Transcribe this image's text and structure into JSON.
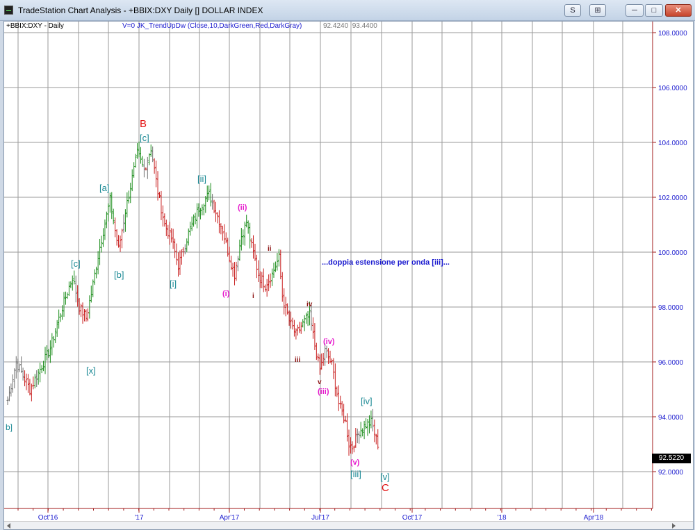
{
  "window": {
    "title": "TradeStation Chart Analysis - +BBIX:DXY Daily [] DOLLAR INDEX",
    "buttons": {
      "s_menu": "S",
      "grid_menu": "⊞",
      "minimize": "─",
      "maximize": "□",
      "close": "✕"
    }
  },
  "chart_header": {
    "symbol": "+BBIX:DXY - Daily",
    "indicator": "V=0  JK_TrendUpDw  (Close,10,DarkGreen,Red,DarkGray)",
    "indicator_values": [
      "92.4240",
      "93.4400"
    ]
  },
  "last_price": "92.5220",
  "annotation": "...doppia estensione per onda [iii]...",
  "colors": {
    "up": "#1a8c1a",
    "down": "#c81e1e",
    "neutral": "#707070",
    "axis": "#a01a1a",
    "grid": "#9a9a9a"
  },
  "chart_data": {
    "type": "bar",
    "y_ticks": [
      "108.0000",
      "106.0000",
      "104.0000",
      "102.0000",
      "100.0000",
      "98.0000",
      "96.0000",
      "94.0000",
      "92.0000"
    ],
    "x_ticks": [
      "Oct'16",
      "'17",
      "Apr'17",
      "Jul'17",
      "Oct'17",
      "'18",
      "Apr'18"
    ],
    "ylim": [
      90.8,
      108.5
    ],
    "grid": true,
    "path": [
      [
        0,
        94.6
      ],
      [
        5,
        96.0
      ],
      [
        13,
        95.0
      ],
      [
        18,
        95.6
      ],
      [
        25,
        96.5
      ],
      [
        32,
        98.0
      ],
      [
        38,
        99.1
      ],
      [
        42,
        98.0
      ],
      [
        46,
        97.6
      ],
      [
        49,
        98.5
      ],
      [
        54,
        100.2
      ],
      [
        60,
        101.9
      ],
      [
        63,
        100.8
      ],
      [
        65,
        100.1
      ],
      [
        69,
        101.5
      ],
      [
        76,
        103.6
      ],
      [
        80,
        103.0
      ],
      [
        84,
        103.8
      ],
      [
        88,
        102.2
      ],
      [
        92,
        101.0
      ],
      [
        96,
        100.5
      ],
      [
        100,
        99.5
      ],
      [
        106,
        100.7
      ],
      [
        112,
        101.6
      ],
      [
        118,
        102.1
      ],
      [
        122,
        101.5
      ],
      [
        126,
        100.8
      ],
      [
        130,
        99.8
      ],
      [
        133,
        99.2
      ],
      [
        137,
        100.6
      ],
      [
        140,
        101.1
      ],
      [
        143,
        100.2
      ],
      [
        147,
        99.2
      ],
      [
        151,
        98.8
      ],
      [
        155,
        99.2
      ],
      [
        159,
        99.8
      ],
      [
        161,
        98.4
      ],
      [
        165,
        97.5
      ],
      [
        169,
        97.0
      ],
      [
        173,
        97.4
      ],
      [
        177,
        97.7
      ],
      [
        180,
        96.6
      ],
      [
        183,
        95.7
      ],
      [
        186,
        96.4
      ],
      [
        190,
        95.9
      ],
      [
        194,
        94.5
      ],
      [
        198,
        93.8
      ],
      [
        200,
        93.0
      ],
      [
        202,
        92.9
      ],
      [
        206,
        93.5
      ],
      [
        210,
        93.7
      ],
      [
        213,
        93.8
      ],
      [
        217,
        93.0
      ]
    ],
    "wave_labels": [
      {
        "text": "b]",
        "color": "teal"
      },
      {
        "text": "[c]",
        "color": "teal"
      },
      {
        "text": "[x]",
        "color": "teal"
      },
      {
        "text": "[a]",
        "color": "teal"
      },
      {
        "text": "[b]",
        "color": "teal"
      },
      {
        "text": "B",
        "color": "red"
      },
      {
        "text": "[c]",
        "color": "teal"
      },
      {
        "text": "[i]",
        "color": "teal"
      },
      {
        "text": "[ii]",
        "color": "teal"
      },
      {
        "text": "(i)",
        "color": "magenta"
      },
      {
        "text": "(ii)",
        "color": "magenta"
      },
      {
        "text": "ii",
        "color": "darkred"
      },
      {
        "text": "i",
        "color": "darkred"
      },
      {
        "text": "iv",
        "color": "darkred"
      },
      {
        "text": "iii",
        "color": "darkred"
      },
      {
        "text": "(iv)",
        "color": "magenta"
      },
      {
        "text": "v",
        "color": "darkred"
      },
      {
        "text": "(iii)",
        "color": "magenta"
      },
      {
        "text": "[iv]",
        "color": "teal"
      },
      {
        "text": "(v)",
        "color": "magenta"
      },
      {
        "text": "[iii]",
        "color": "teal"
      },
      {
        "text": "[v]",
        "color": "teal"
      },
      {
        "text": "C",
        "color": "red"
      }
    ]
  }
}
